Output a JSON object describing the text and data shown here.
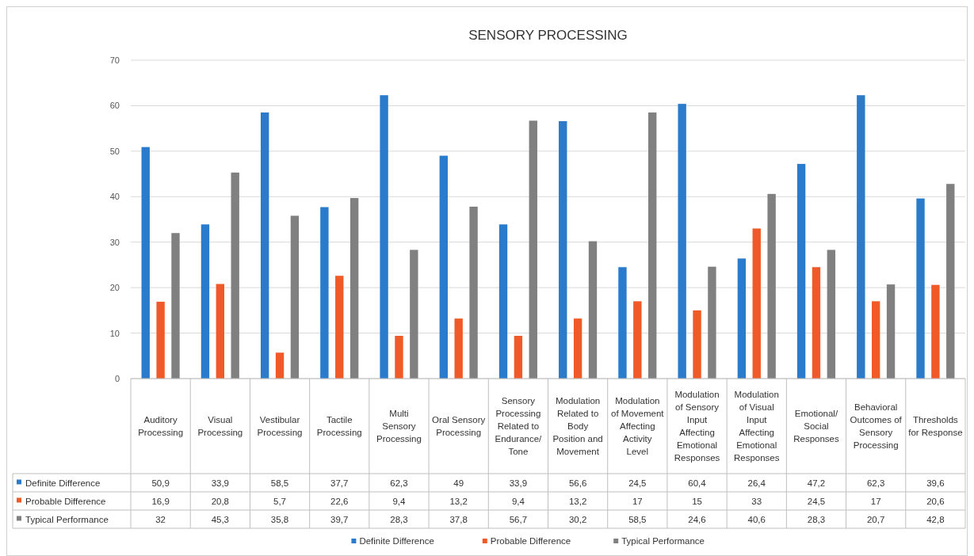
{
  "chart_data": {
    "type": "bar",
    "title": "SENSORY PROCESSING",
    "categories": [
      "Auditory Processing",
      "Visual Processing",
      "Vestibular Processing",
      "Tactile Processing",
      "Multi Sensory Processing",
      "Oral Sensory Processing",
      "Sensory Processing Related to Endurance/ Tone",
      "Modulation Related to Body Position and Movement",
      "Modulation of Movement Affecting Activity Level",
      "Modulation of Sensory Input Affecting Emotional Responses",
      "Modulation of Visual Input Affecting Emotional Responses",
      "Emotional/ Social Responses",
      "Behavioral Outcomes of Sensory Processing",
      "Thresholds for Response"
    ],
    "series": [
      {
        "name": "Definite Difference",
        "color": "#2a7bcb",
        "values": [
          50.9,
          33.9,
          58.5,
          37.7,
          62.3,
          49,
          33.9,
          56.6,
          24.5,
          60.4,
          26.4,
          47.2,
          62.3,
          39.6
        ],
        "value_labels": [
          "50,9",
          "33,9",
          "58,5",
          "37,7",
          "62,3",
          "49",
          "33,9",
          "56,6",
          "24,5",
          "60,4",
          "26,4",
          "47,2",
          "62,3",
          "39,6"
        ]
      },
      {
        "name": "Probable Difference",
        "color": "#f05a28",
        "values": [
          16.9,
          20.8,
          5.7,
          22.6,
          9.4,
          13.2,
          9.4,
          13.2,
          17,
          15,
          33,
          24.5,
          17,
          20.6
        ],
        "value_labels": [
          "16,9",
          "20,8",
          "5,7",
          "22,6",
          "9,4",
          "13,2",
          "9,4",
          "13,2",
          "17",
          "15",
          "33",
          "24,5",
          "17",
          "20,6"
        ]
      },
      {
        "name": "Typical Performance",
        "color": "#808080",
        "values": [
          32,
          45.3,
          35.8,
          39.7,
          28.3,
          37.8,
          56.7,
          30.2,
          58.5,
          24.6,
          40.6,
          28.3,
          20.7,
          42.8
        ],
        "value_labels": [
          "32",
          "45,3",
          "35,8",
          "39,7",
          "28,3",
          "37,8",
          "56,7",
          "30,2",
          "58,5",
          "24,6",
          "40,6",
          "28,3",
          "20,7",
          "42,8"
        ]
      }
    ],
    "ylim": [
      0,
      70
    ],
    "yticks": [
      0,
      10,
      20,
      30,
      40,
      50,
      60,
      70
    ],
    "grid": "y",
    "legend": "bottom"
  }
}
